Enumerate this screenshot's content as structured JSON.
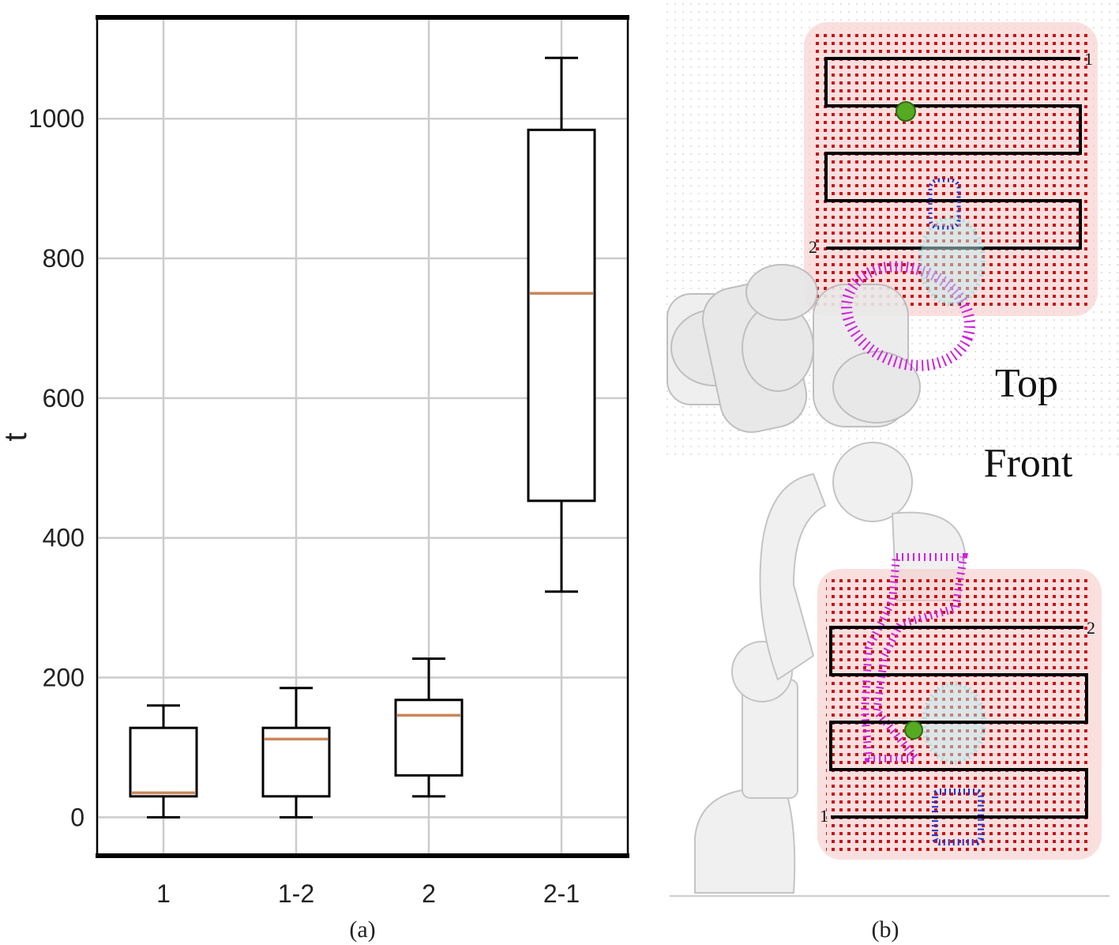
{
  "chart_data": {
    "type": "box",
    "categories": [
      "1",
      "1-2",
      "2",
      "2-1"
    ],
    "boxes": [
      {
        "category": "1",
        "whisker_low": 0,
        "q1": 30,
        "median": 35,
        "q3": 128,
        "whisker_high": 160
      },
      {
        "category": "1-2",
        "whisker_low": 0,
        "q1": 30,
        "median": 112,
        "q3": 128,
        "whisker_high": 185
      },
      {
        "category": "2",
        "whisker_low": 30,
        "q1": 60,
        "median": 146,
        "q3": 168,
        "whisker_high": 227
      },
      {
        "category": "2-1",
        "whisker_low": 323,
        "q1": 453,
        "median": 750,
        "q3": 984,
        "whisker_high": 1087
      }
    ],
    "ylabel": "t",
    "yticks": [
      0,
      200,
      400,
      600,
      800,
      1000
    ],
    "ylim": [
      -55,
      1145
    ],
    "grid": true,
    "colors": {
      "box": "#000000",
      "median": "#c8875a",
      "grid": "#cccccc"
    }
  },
  "captions": {
    "a": "(a)",
    "b": "(b)"
  },
  "panel_b": {
    "top_view_label": "Top",
    "front_view_label": "Front",
    "path_start_label": "1",
    "path_end_label": "2",
    "colors": {
      "grid_points": "#cc1111",
      "path": "#000000",
      "point_cloud_1": "#cc22dd",
      "point_cloud_2": "#2233cc",
      "point_cloud_3": "#66dddd",
      "target": "#55aa22"
    }
  }
}
